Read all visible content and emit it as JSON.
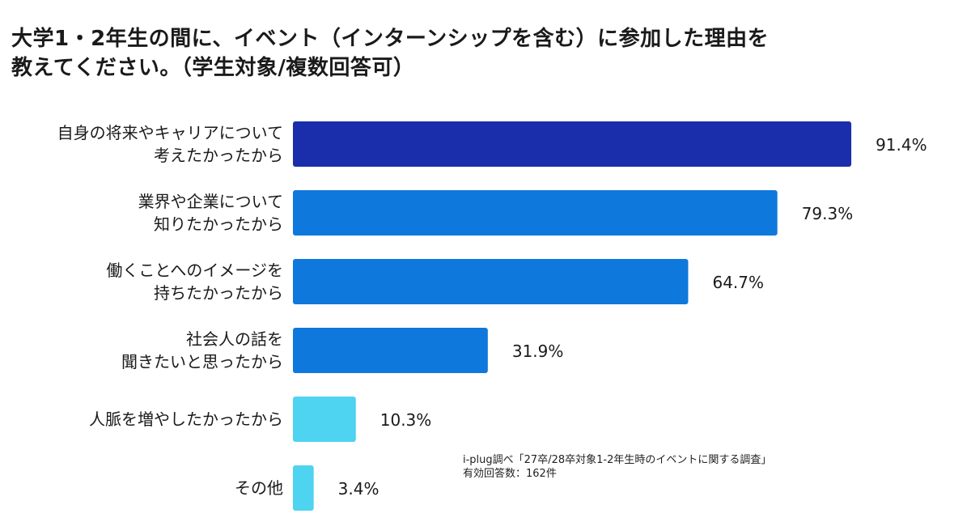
{
  "title_lines": [
    "大学1・2年生の間に、イベント（インターンシップを含む）に参加した理由を",
    "教えてください。（学生対象/複数回答可）"
  ],
  "note_lines": [
    "i-plug調べ「27卒/28卒対象1-2年生時のイベントに関する調査」",
    "有効回答数：162件"
  ],
  "chart_data": {
    "type": "bar",
    "orientation": "horizontal",
    "categories": [
      [
        "自身の将来やキャリアについて",
        "考えたかったから"
      ],
      [
        "業界や企業について",
        "知りたかったから"
      ],
      [
        "働くことへのイメージを",
        "持ちたかったから"
      ],
      [
        "社会人の話を",
        "聞きたいと思ったから"
      ],
      [
        "人脈を増やしたかったから"
      ],
      [
        "その他"
      ]
    ],
    "values": [
      91.4,
      79.3,
      64.7,
      31.9,
      10.3,
      3.4
    ],
    "value_labels": [
      "91.4%",
      "79.3%",
      "64.7%",
      "31.9%",
      "10.3%",
      "3.4%"
    ],
    "colors": [
      "#1a2eab",
      "#0f78dc",
      "#0f78dc",
      "#0f78dc",
      "#4ed3f0",
      "#4ed3f0"
    ],
    "xlim": [
      0,
      100
    ],
    "grid": false,
    "legend": "none"
  }
}
